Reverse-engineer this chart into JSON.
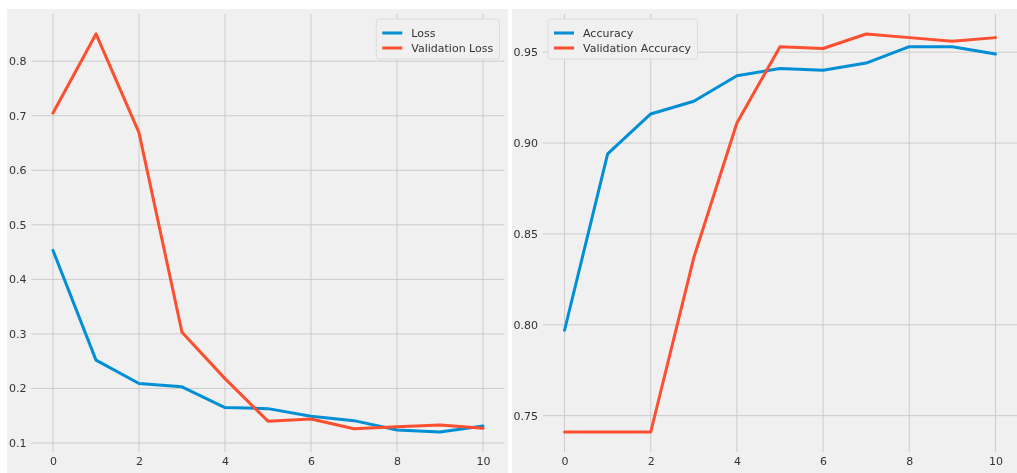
{
  "chart_data": [
    {
      "type": "line",
      "x": [
        0,
        1,
        2,
        3,
        4,
        5,
        6,
        7,
        8,
        9,
        10
      ],
      "series": [
        {
          "name": "Loss",
          "color": "#008fd5",
          "values": [
            0.453,
            0.252,
            0.209,
            0.203,
            0.165,
            0.163,
            0.149,
            0.141,
            0.124,
            0.12,
            0.131
          ]
        },
        {
          "name": "Validation Loss",
          "color": "#fc4f30",
          "values": [
            0.705,
            0.85,
            0.669,
            0.303,
            0.218,
            0.14,
            0.144,
            0.126,
            0.13,
            0.133,
            0.127
          ]
        }
      ],
      "xlim": [
        -0.5,
        10.5
      ],
      "xticks": [
        0,
        2,
        4,
        6,
        8,
        10
      ],
      "ylim": [
        0.0835,
        0.8865
      ],
      "yticks": [
        0.1,
        0.2,
        0.3,
        0.4,
        0.5,
        0.6,
        0.7,
        0.8
      ],
      "grid": true,
      "legend": "top right"
    },
    {
      "type": "line",
      "x": [
        0,
        1,
        2,
        3,
        4,
        5,
        6,
        7,
        8,
        9,
        10
      ],
      "series": [
        {
          "name": "Accuracy",
          "color": "#008fd5",
          "values": [
            0.797,
            0.894,
            0.916,
            0.923,
            0.937,
            0.941,
            0.94,
            0.944,
            0.953,
            0.953,
            0.949
          ]
        },
        {
          "name": "Validation Accuracy",
          "color": "#fc4f30",
          "values": [
            0.741,
            0.741,
            0.741,
            0.837,
            0.911,
            0.953,
            0.952,
            0.96,
            0.958,
            0.956,
            0.958
          ]
        }
      ],
      "xlim": [
        -0.5,
        10.5
      ],
      "xticks": [
        0,
        2,
        4,
        6,
        8,
        10
      ],
      "ylim": [
        0.73,
        0.971
      ],
      "yticks": [
        0.75,
        {
          "value": 0.8,
          "label": "0.80"
        },
        0.85,
        {
          "value": 0.9,
          "label": "0.90"
        },
        0.95
      ],
      "grid": true,
      "legend": "top left"
    }
  ]
}
